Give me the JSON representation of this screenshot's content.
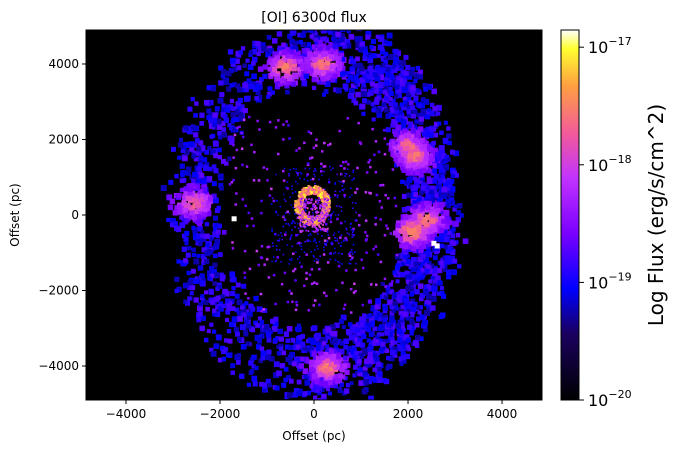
{
  "chart_data": {
    "type": "heatmap",
    "title": "[OI] 6300d flux",
    "xlabel": "Offset (pc)",
    "ylabel": "Offset (pc)",
    "xlim": [
      -4850,
      4850
    ],
    "ylim": [
      -4900,
      4900
    ],
    "x_ticks": [
      -4000,
      -2000,
      0,
      2000,
      4000
    ],
    "y_ticks": [
      -4000,
      -2000,
      0,
      2000,
      4000
    ],
    "x_tick_labels": [
      "−4000",
      "−2000",
      "0",
      "2000",
      "4000"
    ],
    "y_tick_labels": [
      "−4000",
      "−2000",
      "0",
      "2000",
      "4000"
    ],
    "background": "#000000",
    "colormap": "gnuplot2",
    "colorbar": {
      "label": "Log Flux (erg/s/cm^2)",
      "scale": "log",
      "range": [
        1e-20,
        1.4e-17
      ],
      "ticks": [
        {
          "value": 1e-20,
          "base": "10",
          "exp": "−20"
        },
        {
          "value": 1e-19,
          "base": "10",
          "exp": "−19"
        },
        {
          "value": 1e-18,
          "base": "10",
          "exp": "−18"
        },
        {
          "value": 1e-17,
          "base": "10",
          "exp": "−17"
        }
      ]
    },
    "structures": [
      {
        "name": "outer ring",
        "shape": "ellipse",
        "center": [
          -50,
          150
        ],
        "radius_x": 2500,
        "radius_y": 4200
      },
      {
        "name": "central ring",
        "shape": "ellipse",
        "center": [
          -30,
          250
        ],
        "radius_x": 300,
        "radius_y": 420
      }
    ],
    "bright_knots": [
      {
        "x": -600,
        "y": 3900,
        "log_flux": -17.7
      },
      {
        "x": 200,
        "y": 4000,
        "log_flux": -17.8
      },
      {
        "x": 2000,
        "y": 1800,
        "log_flux": -17.9
      },
      {
        "x": 2150,
        "y": 1550,
        "log_flux": -17.8
      },
      {
        "x": 2100,
        "y": -450,
        "log_flux": -17.6
      },
      {
        "x": 2400,
        "y": -150,
        "log_flux": -17.8
      },
      {
        "x": -2550,
        "y": 300,
        "log_flux": -17.9
      },
      {
        "x": 300,
        "y": -4050,
        "log_flux": -17.8
      },
      {
        "x": -300,
        "y": 450,
        "log_flux": -17.1
      },
      {
        "x": 150,
        "y": 500,
        "log_flux": -17.2
      },
      {
        "x": -150,
        "y": 0,
        "log_flux": -17.3
      },
      {
        "x": 200,
        "y": 100,
        "log_flux": -17.4
      }
    ]
  }
}
